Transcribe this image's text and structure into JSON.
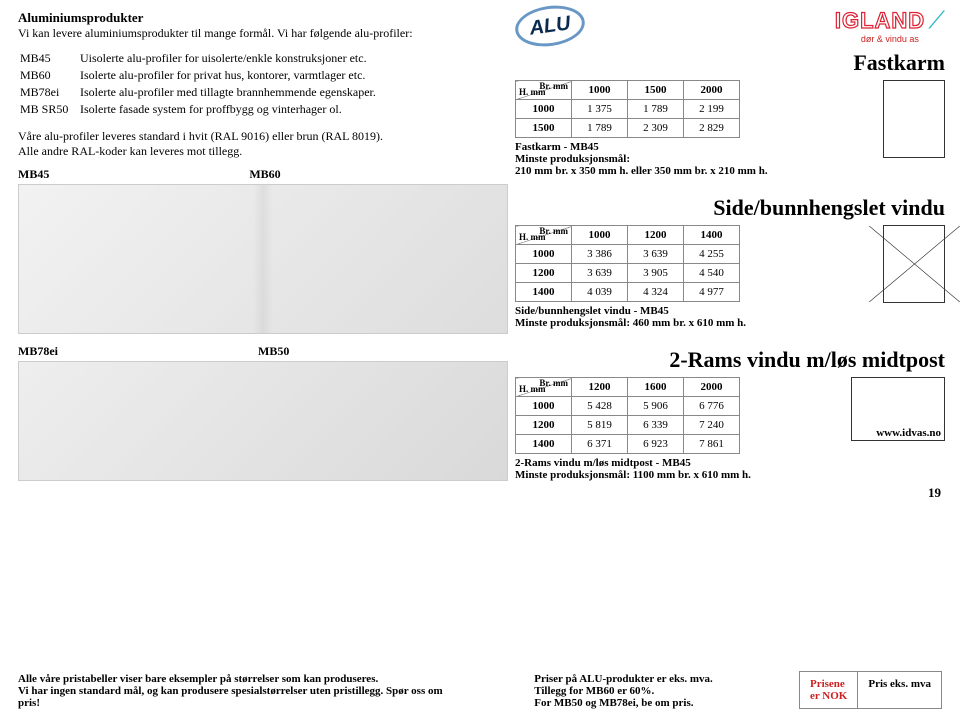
{
  "intro": {
    "title": "Aluminiumsprodukter",
    "line": "Vi kan levere aluminiumsprodukter til mange formål. Vi har følgende alu-profiler:"
  },
  "definitions": [
    {
      "code": "MB45",
      "desc": "Uisolerte alu-profiler for uisolerte/enkle konstruksjoner etc."
    },
    {
      "code": "MB60",
      "desc": "Isolerte alu-profiler for privat hus, kontorer, varmtlager etc."
    },
    {
      "code": "MB78ei",
      "desc": "Isolerte alu-profiler med tillagte brannhemmende egenskaper."
    },
    {
      "code": "MB SR50",
      "desc": "Isolerte fasade system for proffbygg og vinterhager ol."
    }
  ],
  "ral_note1": "Våre alu-profiler leveres standard i hvit (RAL 9016) eller brun (RAL 8019).",
  "ral_note2": "Alle andre RAL-koder kan leveres mot tillegg.",
  "profile_labels": {
    "a": "MB45",
    "b": "MB60",
    "c": "MB78ei",
    "d": "MB50"
  },
  "logo": {
    "alu": "ALU",
    "brand": "IGLAND",
    "sub": "dør & vindu as"
  },
  "sections": [
    {
      "title": "Fastkarm",
      "iconClass": "fk",
      "cols": [
        "1000",
        "1500",
        "2000"
      ],
      "rows": [
        {
          "h": "1000",
          "vals": [
            "1 375",
            "1 789",
            "2 199"
          ]
        },
        {
          "h": "1500",
          "vals": [
            "1 789",
            "2 309",
            "2 829"
          ]
        }
      ],
      "note1": "Fastkarm - MB45",
      "note2": "Minste produksjonsmål:",
      "note3": "210 mm br. x 350 mm h. eller 350 mm br. x 210 mm h."
    },
    {
      "title": "Side/bunnhengslet vindu",
      "iconClass": "sb",
      "cols": [
        "1000",
        "1200",
        "1400"
      ],
      "rows": [
        {
          "h": "1000",
          "vals": [
            "3 386",
            "3 639",
            "4 255"
          ]
        },
        {
          "h": "1200",
          "vals": [
            "3 639",
            "3 905",
            "4 540"
          ]
        },
        {
          "h": "1400",
          "vals": [
            "4 039",
            "4 324",
            "4 977"
          ]
        }
      ],
      "note1": "Side/bunnhengslet vindu - MB45",
      "note2": "Minste produksjonsmål: 460 mm br. x 610 mm h.",
      "note3": ""
    },
    {
      "title": "2-Rams vindu m/løs midtpost",
      "iconClass": "tworam",
      "cols": [
        "1200",
        "1600",
        "2000"
      ],
      "rows": [
        {
          "h": "1000",
          "vals": [
            "5 428",
            "5 906",
            "6 776"
          ]
        },
        {
          "h": "1200",
          "vals": [
            "5 819",
            "6 339",
            "7 240"
          ]
        },
        {
          "h": "1400",
          "vals": [
            "6 371",
            "6 923",
            "7 861"
          ]
        }
      ],
      "note1": "2-Rams vindu m/løs midtpost - MB45",
      "note2": "Minste produksjonsmål:  1100 mm br. x 610 mm h.",
      "note3": ""
    }
  ],
  "corner": {
    "br": "Br. mm",
    "h": "H. mm"
  },
  "footer": {
    "left1": "Alle våre pristabeller viser bare eksempler på størrelser som kan produseres.",
    "left2": "Vi har ingen standard mål, og kan produsere spesialstørrelser uten pristillegg. Spør oss om pris!",
    "mid1": "Priser på ALU-produkter er eks. mva.",
    "mid2": "Tillegg for MB60 er 60%.",
    "mid3": "For MB50 og MB78ei, be om pris.",
    "box1a": "Prisene",
    "box1b": "er NOK",
    "box2": "Pris eks. mva",
    "www": "www.idvas.no",
    "page": "19"
  }
}
